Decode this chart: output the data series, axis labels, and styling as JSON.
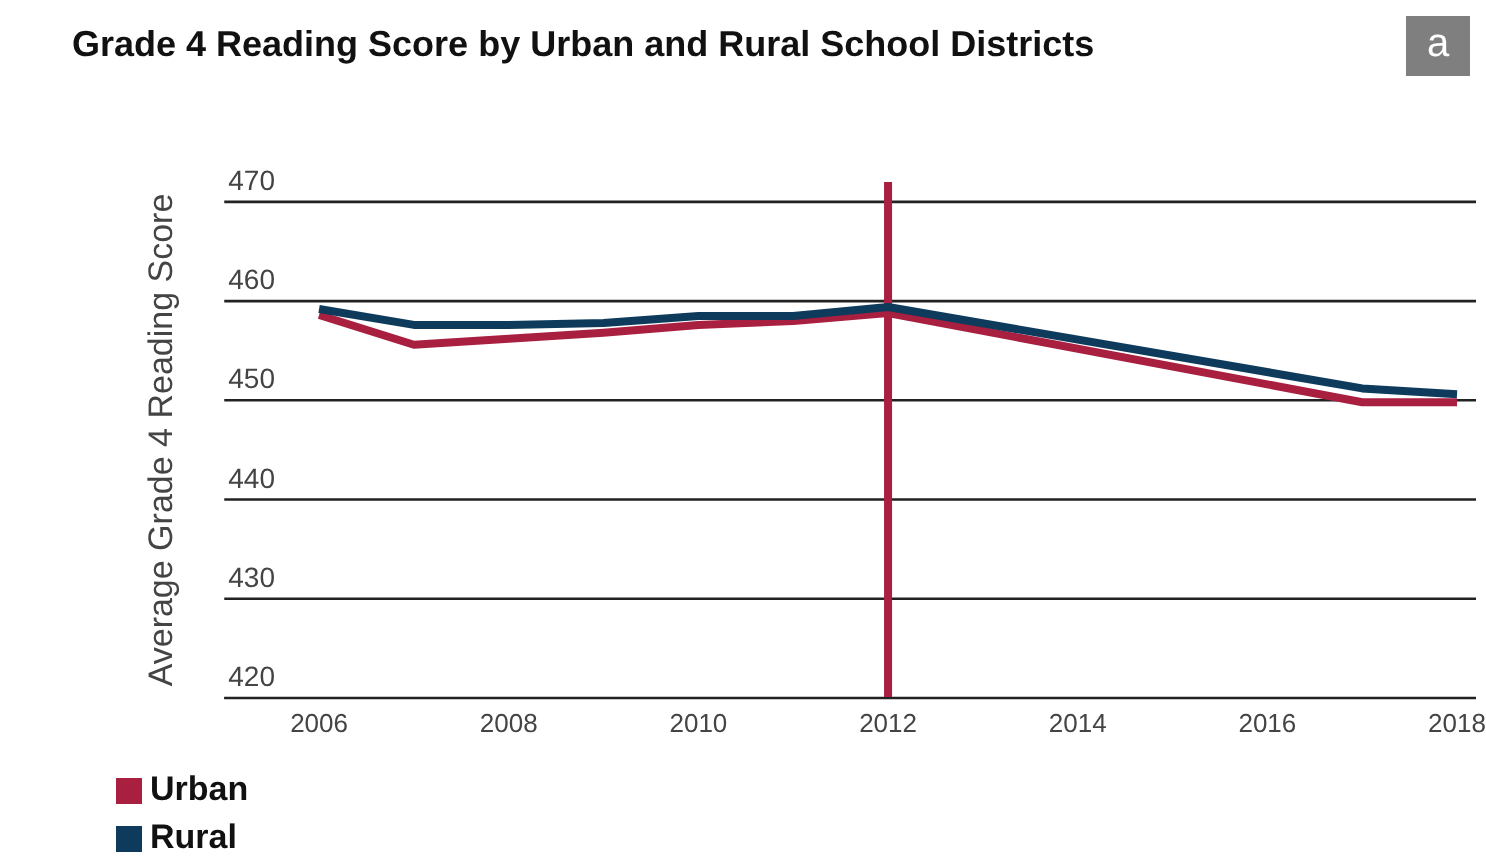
{
  "chart_data": {
    "type": "line",
    "title": "Grade 4 Reading Score by Urban and Rural School Districts",
    "ylabel": "Average Grade 4 Reading Score",
    "annotations": [
      "a"
    ],
    "x": [
      2006,
      2007,
      2008,
      2009,
      2010,
      2011,
      2012,
      2017,
      2018
    ],
    "series": [
      {
        "name": "Urban",
        "color": "#a91f40",
        "values": [
          458.6,
          455.6,
          456.2,
          456.8,
          457.6,
          458.0,
          458.8,
          449.8,
          449.8
        ]
      },
      {
        "name": "Rural",
        "color": "#0e3b5c",
        "values": [
          459.2,
          457.6,
          457.6,
          457.8,
          458.5,
          458.5,
          459.4,
          451.2,
          450.6
        ]
      }
    ],
    "xlim": [
      2005,
      2018.2
    ],
    "xticks": [
      2006,
      2008,
      2010,
      2012,
      2014,
      2016,
      2018
    ],
    "ylim": [
      420,
      472
    ],
    "yticks": [
      420,
      430,
      440,
      450,
      460,
      470
    ],
    "ref_lines": [
      {
        "axis": "x",
        "value": 2012,
        "color": "#a91f40"
      }
    ],
    "grid": "y",
    "legend": "bottom left",
    "marker": "none",
    "line_style": "solid"
  }
}
